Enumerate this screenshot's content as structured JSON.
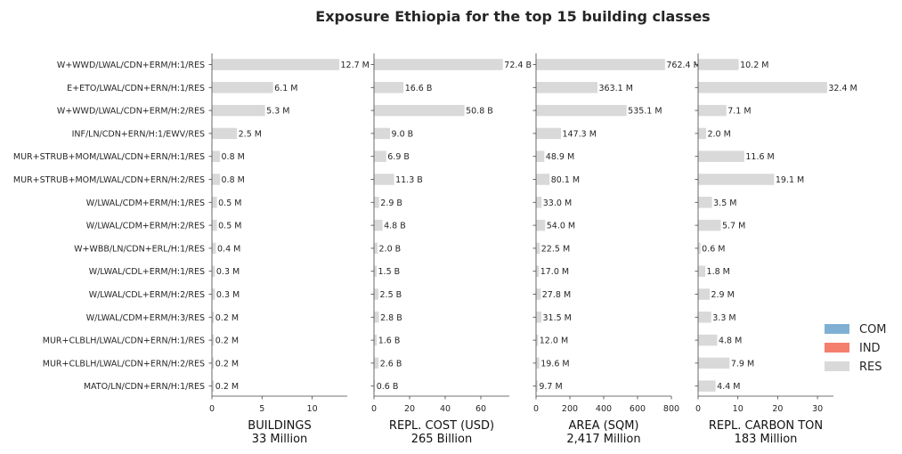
{
  "chart_data": {
    "type": "bar",
    "orientation": "horizontal",
    "title": "Exposure Ethiopia for the top 15 building classes",
    "categories": [
      "W+WWD/LWAL/CDN+ERM/H:1/RES",
      "E+ETO/LWAL/CDN+ERN/H:1/RES",
      "W+WWD/LWAL/CDN+ERM/H:2/RES",
      "INF/LN/CDN+ERN/H:1/EWV/RES",
      "MUR+STRUB+MOM/LWAL/CDN+ERN/H:1/RES",
      "MUR+STRUB+MOM/LWAL/CDN+ERN/H:2/RES",
      "W/LWAL/CDM+ERM/H:1/RES",
      "W/LWAL/CDM+ERM/H:2/RES",
      "W+WBB/LN/CDN+ERL/H:1/RES",
      "W/LWAL/CDL+ERM/H:1/RES",
      "W/LWAL/CDL+ERM/H:2/RES",
      "W/LWAL/CDM+ERM/H:3/RES",
      "MUR+CLBLH/LWAL/CDN+ERN/H:1/RES",
      "MUR+CLBLH/LWAL/CDN+ERN/H:2/RES",
      "MATO/LN/CDN+ERN/H:1/RES"
    ],
    "legend": {
      "placement": "lower-right",
      "entries": [
        {
          "label": "COM",
          "color": "#7fb0d3"
        },
        {
          "label": "IND",
          "color": "#f47f6c"
        },
        {
          "label": "RES",
          "color": "#d9d9d9"
        }
      ]
    },
    "panels": [
      {
        "xlabel": "BUILDINGS",
        "total_label": "33 Million",
        "xlim": [
          0,
          13.5
        ],
        "ticks": [
          0,
          5,
          10
        ],
        "values": [
          12.7,
          6.1,
          5.3,
          2.5,
          0.8,
          0.8,
          0.5,
          0.5,
          0.4,
          0.3,
          0.3,
          0.2,
          0.2,
          0.2,
          0.2
        ],
        "value_labels": [
          "12.7 M",
          "6.1 M",
          "5.3 M",
          "2.5 M",
          "0.8 M",
          "0.8 M",
          "0.5 M",
          "0.5 M",
          "0.4 M",
          "0.3 M",
          "0.3 M",
          "0.2 M",
          "0.2 M",
          "0.2 M",
          "0.2 M"
        ]
      },
      {
        "xlabel": "REPL. COST (USD)",
        "total_label": "265 Billion",
        "xlim": [
          0,
          76
        ],
        "ticks": [
          0,
          20,
          40,
          60
        ],
        "values": [
          72.4,
          16.6,
          50.8,
          9.0,
          6.9,
          11.3,
          2.9,
          4.8,
          2.0,
          1.5,
          2.5,
          2.8,
          1.6,
          2.6,
          0.6
        ],
        "value_labels": [
          "72.4 B",
          "16.6 B",
          "50.8 B",
          "9.0 B",
          "6.9 B",
          "11.3 B",
          "2.9 B",
          "4.8 B",
          "2.0 B",
          "1.5 B",
          "2.5 B",
          "2.8 B",
          "1.6 B",
          "2.6 B",
          "0.6 B"
        ]
      },
      {
        "xlabel": "AREA (SQM)",
        "total_label": "2,417 Million",
        "xlim": [
          0,
          800
        ],
        "ticks": [
          0,
          200,
          400,
          600,
          800
        ],
        "values": [
          762.4,
          363.1,
          535.1,
          147.3,
          48.9,
          80.1,
          33.0,
          54.0,
          22.5,
          17.0,
          27.8,
          31.5,
          12.0,
          19.6,
          9.7
        ],
        "value_labels": [
          "762.4 M",
          "363.1 M",
          "535.1 M",
          "147.3 M",
          "48.9 M",
          "80.1 M",
          "33.0 M",
          "54.0 M",
          "22.5 M",
          "17.0 M",
          "27.8 M",
          "31.5 M",
          "12.0 M",
          "19.6 M",
          "9.7 M"
        ]
      },
      {
        "xlabel": "REPL. CARBON TON",
        "total_label": "183 Million",
        "xlim": [
          0,
          34
        ],
        "ticks": [
          0,
          10,
          20,
          30
        ],
        "values": [
          10.2,
          32.4,
          7.1,
          2.0,
          11.6,
          19.1,
          3.5,
          5.7,
          0.6,
          1.8,
          2.9,
          3.3,
          4.8,
          7.9,
          4.4
        ],
        "value_labels": [
          "10.2 M",
          "32.4 M",
          "7.1 M",
          "2.0 M",
          "11.6 M",
          "19.1 M",
          "3.5 M",
          "5.7 M",
          "0.6 M",
          "1.8 M",
          "2.9 M",
          "3.3 M",
          "4.8 M",
          "7.9 M",
          "4.4 M"
        ]
      }
    ],
    "bar_color": "#d9d9d9",
    "grid": false
  }
}
